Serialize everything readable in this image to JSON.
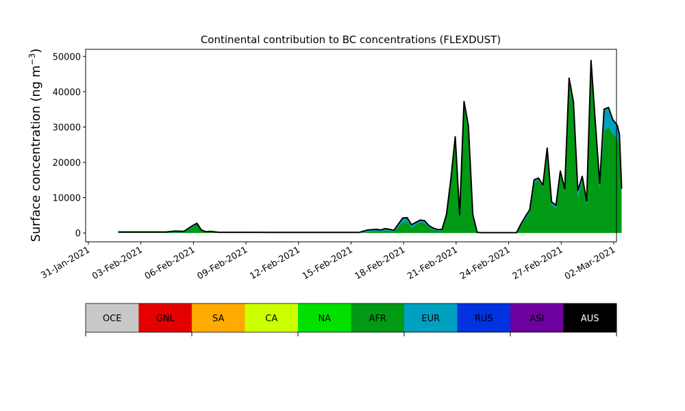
{
  "chart_data": {
    "type": "area",
    "title": "Continental contribution to BC concentrations (FLEXDUST)",
    "ylabel": "Surface concentration (ng m",
    "ylabel_unit_sup": "−3",
    "ylabel_close": ")",
    "xlim": [
      "2021-01-31",
      "2021-03-02"
    ],
    "ylim": [
      -2500,
      52000
    ],
    "x_ticks": [
      "2021-01-31",
      "2021-02-03",
      "2021-02-06",
      "2021-02-09",
      "2021-02-12",
      "2021-02-15",
      "2021-02-18",
      "2021-02-21",
      "2021-02-24",
      "2021-02-27",
      "2021-03-02"
    ],
    "x_tick_labels": [
      "31-Jan-2021",
      "03-Feb-2021",
      "06-Feb-2021",
      "09-Feb-2021",
      "12-Feb-2021",
      "15-Feb-2021",
      "18-Feb-2021",
      "21-Feb-2021",
      "24-Feb-2021",
      "27-Feb-2021",
      "02-Mar-2021"
    ],
    "y_ticks": [
      0,
      10000,
      20000,
      30000,
      40000,
      50000
    ],
    "y_tick_labels": [
      "0",
      "10000",
      "20000",
      "30000",
      "40000",
      "50000"
    ],
    "grid": false,
    "legend_position": "bottom",
    "legend": [
      {
        "label": "OCE",
        "color": "#c8c8c8"
      },
      {
        "label": "GNL",
        "color": "#e50000"
      },
      {
        "label": "SA",
        "color": "#ffaa00"
      },
      {
        "label": "CA",
        "color": "#ccff00"
      },
      {
        "label": "NA",
        "color": "#00e100"
      },
      {
        "label": "AFR",
        "color": "#009a14"
      },
      {
        "label": "EUR",
        "color": "#00a0c0"
      },
      {
        "label": "RUS",
        "color": "#0032e0"
      },
      {
        "label": "ASI",
        "color": "#6e00a0"
      },
      {
        "label": "AUS",
        "color": "#000000"
      }
    ],
    "x": [
      "2021-02-01 06:00",
      "2021-02-02 00:00",
      "2021-02-02 12:00",
      "2021-02-03 00:00",
      "2021-02-03 12:00",
      "2021-02-04 00:00",
      "2021-02-04 12:00",
      "2021-02-05 00:00",
      "2021-02-05 12:00",
      "2021-02-05 18:00",
      "2021-02-06 00:00",
      "2021-02-06 06:00",
      "2021-02-06 12:00",
      "2021-02-07 00:00",
      "2021-02-07 12:00",
      "2021-02-08 00:00",
      "2021-02-08 12:00",
      "2021-02-09 00:00",
      "2021-02-10 00:00",
      "2021-02-11 00:00",
      "2021-02-12 00:00",
      "2021-02-13 00:00",
      "2021-02-14 00:00",
      "2021-02-15 00:00",
      "2021-02-15 12:00",
      "2021-02-16 00:00",
      "2021-02-16 06:00",
      "2021-02-16 12:00",
      "2021-02-16 18:00",
      "2021-02-17 00:00",
      "2021-02-17 12:00",
      "2021-02-17 18:00",
      "2021-02-18 00:00",
      "2021-02-18 12:00",
      "2021-02-18 18:00",
      "2021-02-19 00:00",
      "2021-02-19 06:00",
      "2021-02-19 12:00",
      "2021-02-19 18:00",
      "2021-02-20 00:00",
      "2021-02-20 06:00",
      "2021-02-20 12:00",
      "2021-02-20 18:00",
      "2021-02-21 00:00",
      "2021-02-21 06:00",
      "2021-02-21 12:00",
      "2021-02-21 18:00",
      "2021-02-22 00:00",
      "2021-02-22 12:00",
      "2021-02-23 00:00",
      "2021-02-23 12:00",
      "2021-02-24 00:00",
      "2021-02-24 06:00",
      "2021-02-24 12:00",
      "2021-02-24 18:00",
      "2021-02-25 00:00",
      "2021-02-25 06:00",
      "2021-02-25 12:00",
      "2021-02-25 18:00",
      "2021-02-26 00:00",
      "2021-02-26 06:00",
      "2021-02-26 12:00",
      "2021-02-26 18:00",
      "2021-02-27 00:00",
      "2021-02-27 06:00",
      "2021-02-27 12:00",
      "2021-02-27 18:00",
      "2021-02-28 00:00",
      "2021-02-28 06:00",
      "2021-02-28 12:00",
      "2021-02-28 18:00",
      "2021-03-01 00:00",
      "2021-03-01 06:00",
      "2021-03-01 12:00",
      "2021-03-01 18:00",
      "2021-03-01 21:00",
      "2021-03-02 00:00"
    ],
    "series": [
      {
        "name": "AFR",
        "color": "#009a14",
        "values": [
          150,
          150,
          150,
          150,
          150,
          150,
          400,
          300,
          1500,
          2500,
          700,
          200,
          300,
          0,
          0,
          0,
          0,
          0,
          0,
          0,
          0,
          0,
          0,
          0,
          300,
          600,
          400,
          700,
          600,
          400,
          3000,
          3500,
          1500,
          3000,
          2800,
          1500,
          900,
          600,
          700,
          5000,
          15000,
          27000,
          5000,
          37000,
          30000,
          5000,
          0,
          0,
          0,
          0,
          0,
          0,
          2000,
          4000,
          6000,
          14000,
          15000,
          13000,
          23000,
          8000,
          7000,
          17000,
          12000,
          43000,
          36000,
          10000,
          15000,
          8000,
          48000,
          30000,
          13000,
          29000,
          30000,
          28000,
          27000,
          25000,
          11000
        ]
      },
      {
        "name": "EUR",
        "color": "#00a0c0",
        "values": [
          100,
          100,
          100,
          100,
          100,
          100,
          100,
          100,
          500,
          200,
          100,
          100,
          100,
          150,
          150,
          150,
          150,
          150,
          100,
          100,
          100,
          100,
          100,
          100,
          500,
          400,
          400,
          500,
          400,
          300,
          1200,
          800,
          800,
          600,
          600,
          500,
          400,
          300,
          300,
          200,
          200,
          200,
          100,
          200,
          300,
          200,
          100,
          50,
          50,
          50,
          50,
          50,
          500,
          600,
          500,
          1000,
          500,
          500,
          1000,
          800,
          800,
          500,
          500,
          800,
          1000,
          2000,
          1000,
          1000,
          800,
          1000,
          1000,
          6000,
          5500,
          4000,
          3500,
          2800,
          1500
        ]
      },
      {
        "name": "AUS",
        "color": "#000000",
        "values": [
          50,
          50,
          50,
          50,
          50,
          50,
          50,
          50,
          50,
          50,
          50,
          50,
          50,
          50,
          50,
          50,
          50,
          50,
          50,
          50,
          50,
          50,
          50,
          50,
          50,
          50,
          50,
          50,
          50,
          50,
          50,
          50,
          50,
          50,
          50,
          50,
          50,
          50,
          50,
          50,
          50,
          50,
          50,
          50,
          50,
          50,
          50,
          50,
          50,
          50,
          50,
          50,
          50,
          50,
          50,
          50,
          50,
          50,
          50,
          50,
          50,
          50,
          50,
          50,
          50,
          50,
          50,
          50,
          50,
          50,
          50,
          50,
          50,
          50,
          50,
          50,
          50
        ]
      }
    ]
  }
}
